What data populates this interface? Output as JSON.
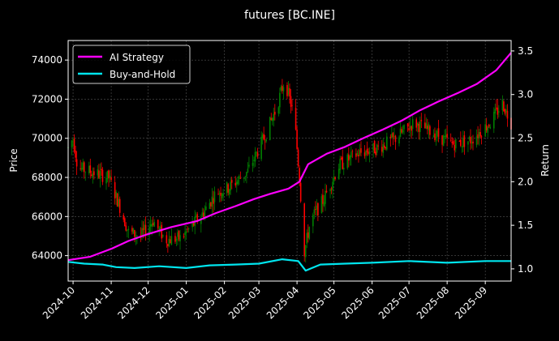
{
  "chart_data": {
    "type": "candlestick+line",
    "title": "futures [BC.INE]",
    "ylabel_left": "Price",
    "ylabel_right": "Return",
    "ylim_left": [
      62700,
      75000
    ],
    "ylim_right": [
      0.86,
      3.62
    ],
    "y_ticks_left": [
      64000,
      66000,
      68000,
      70000,
      72000,
      74000
    ],
    "y_tick_labels_left": [
      "64000",
      "66000",
      "68000",
      "70000",
      "72000",
      "74000"
    ],
    "y_ticks_right": [
      1.0,
      1.5,
      2.0,
      2.5,
      3.0,
      3.5
    ],
    "y_tick_labels_right": [
      "1.0",
      "1.5",
      "2.0",
      "2.5",
      "3.0",
      "3.5"
    ],
    "x_range": [
      "2024-09-27",
      "2025-09-22"
    ],
    "x_ticks": [
      "2024-10-01",
      "2024-11-01",
      "2024-12-01",
      "2025-01-01",
      "2025-02-01",
      "2025-03-01",
      "2025-04-01",
      "2025-05-01",
      "2025-06-01",
      "2025-07-01",
      "2025-08-01",
      "2025-09-01"
    ],
    "x_tick_labels": [
      "2024-10",
      "2024-11",
      "2024-12",
      "2025-01",
      "2025-02",
      "2025-03",
      "2025-04",
      "2025-05",
      "2025-06",
      "2025-07",
      "2025-08",
      "2025-09"
    ],
    "grid": true,
    "legend_position": "top-left",
    "colors": {
      "background": "#000000",
      "up_candle": "#008000",
      "down_candle": "#ff0000",
      "ai_strategy": "#ff00ff",
      "buy_and_hold": "#00e5ee",
      "grid": "#555555",
      "text": "#ffffff"
    },
    "series": [
      {
        "name": "AI Strategy",
        "axis": "right",
        "points": [
          [
            "2024-09-27",
            1.1
          ],
          [
            "2024-10-15",
            1.14
          ],
          [
            "2024-11-01",
            1.23
          ],
          [
            "2024-11-15",
            1.32
          ],
          [
            "2024-12-01",
            1.4
          ],
          [
            "2024-12-20",
            1.48
          ],
          [
            "2025-01-10",
            1.55
          ],
          [
            "2025-01-25",
            1.64
          ],
          [
            "2025-02-10",
            1.72
          ],
          [
            "2025-02-25",
            1.8
          ],
          [
            "2025-03-10",
            1.86
          ],
          [
            "2025-03-25",
            1.92
          ],
          [
            "2025-04-03",
            2.0
          ],
          [
            "2025-04-10",
            2.2
          ],
          [
            "2025-04-25",
            2.32
          ],
          [
            "2025-05-10",
            2.4
          ],
          [
            "2025-05-25",
            2.5
          ],
          [
            "2025-06-10",
            2.6
          ],
          [
            "2025-06-25",
            2.7
          ],
          [
            "2025-07-10",
            2.82
          ],
          [
            "2025-07-25",
            2.92
          ],
          [
            "2025-08-10",
            3.02
          ],
          [
            "2025-08-25",
            3.12
          ],
          [
            "2025-09-10",
            3.28
          ],
          [
            "2025-09-22",
            3.48
          ]
        ]
      },
      {
        "name": "Buy-and-Hold",
        "axis": "right",
        "points": [
          [
            "2024-09-27",
            1.08
          ],
          [
            "2024-10-10",
            1.06
          ],
          [
            "2024-10-25",
            1.05
          ],
          [
            "2024-11-05",
            1.02
          ],
          [
            "2024-11-20",
            1.01
          ],
          [
            "2024-12-10",
            1.03
          ],
          [
            "2025-01-01",
            1.01
          ],
          [
            "2025-01-20",
            1.04
          ],
          [
            "2025-02-10",
            1.05
          ],
          [
            "2025-03-01",
            1.06
          ],
          [
            "2025-03-20",
            1.11
          ],
          [
            "2025-04-02",
            1.09
          ],
          [
            "2025-04-08",
            0.98
          ],
          [
            "2025-04-20",
            1.05
          ],
          [
            "2025-05-10",
            1.06
          ],
          [
            "2025-06-01",
            1.07
          ],
          [
            "2025-07-01",
            1.09
          ],
          [
            "2025-08-01",
            1.07
          ],
          [
            "2025-09-01",
            1.09
          ],
          [
            "2025-09-22",
            1.09
          ]
        ]
      }
    ],
    "price_anchors": [
      [
        "2024-09-27",
        69500
      ],
      [
        "2024-10-01",
        70000
      ],
      [
        "2024-10-05",
        68500
      ],
      [
        "2024-10-20",
        68200
      ],
      [
        "2024-10-30",
        68000
      ],
      [
        "2024-11-08",
        66500
      ],
      [
        "2024-11-15",
        65200
      ],
      [
        "2024-11-25",
        65000
      ],
      [
        "2024-12-05",
        65800
      ],
      [
        "2024-12-15",
        64800
      ],
      [
        "2024-12-28",
        64900
      ],
      [
        "2025-01-15",
        66200
      ],
      [
        "2025-01-25",
        67200
      ],
      [
        "2025-02-05",
        67500
      ],
      [
        "2025-02-20",
        68300
      ],
      [
        "2025-03-05",
        70000
      ],
      [
        "2025-03-15",
        71500
      ],
      [
        "2025-03-22",
        73000
      ],
      [
        "2025-03-30",
        71000
      ],
      [
        "2025-04-03",
        68000
      ],
      [
        "2025-04-07",
        64200
      ],
      [
        "2025-04-12",
        65800
      ],
      [
        "2025-04-22",
        66800
      ],
      [
        "2025-05-05",
        68600
      ],
      [
        "2025-05-20",
        69200
      ],
      [
        "2025-06-05",
        69500
      ],
      [
        "2025-06-20",
        70000
      ],
      [
        "2025-07-05",
        70800
      ],
      [
        "2025-07-20",
        70300
      ],
      [
        "2025-08-05",
        69700
      ],
      [
        "2025-08-20",
        69900
      ],
      [
        "2025-09-05",
        70800
      ],
      [
        "2025-09-15",
        71800
      ],
      [
        "2025-09-22",
        70800
      ]
    ]
  }
}
